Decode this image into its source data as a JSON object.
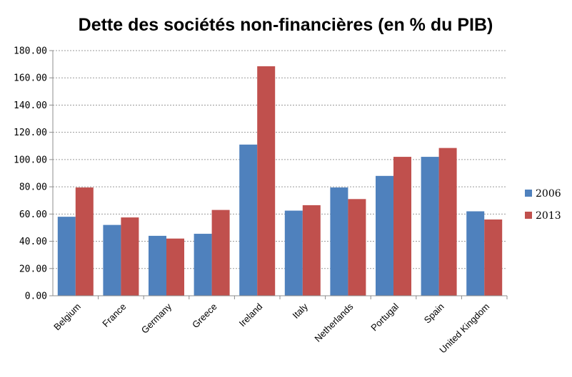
{
  "chart_data": {
    "type": "bar",
    "title": "Dette des sociétés non-financières (en % du PIB)",
    "xlabel": "",
    "ylabel": "",
    "ylim": [
      0,
      180
    ],
    "yticks": [
      "0.00",
      "20.00",
      "40.00",
      "60.00",
      "80.00",
      "100.00",
      "120.00",
      "140.00",
      "160.00",
      "180.00"
    ],
    "grid": true,
    "legend_position": "right",
    "categories": [
      "Belgium",
      "France",
      "Germany",
      "Greece",
      "Ireland",
      "Italy",
      "Netherlands",
      "Portugal",
      "Spain",
      "United Kingdom"
    ],
    "series": [
      {
        "name": "2006",
        "color": "#4f81bd",
        "values": [
          58,
          52,
          44,
          45.5,
          111,
          62.5,
          79.5,
          88,
          102,
          62
        ]
      },
      {
        "name": "2013",
        "color": "#c0504d",
        "values": [
          79.5,
          57.5,
          42,
          63,
          168.5,
          66.5,
          71,
          102,
          108.5,
          56
        ]
      }
    ]
  }
}
